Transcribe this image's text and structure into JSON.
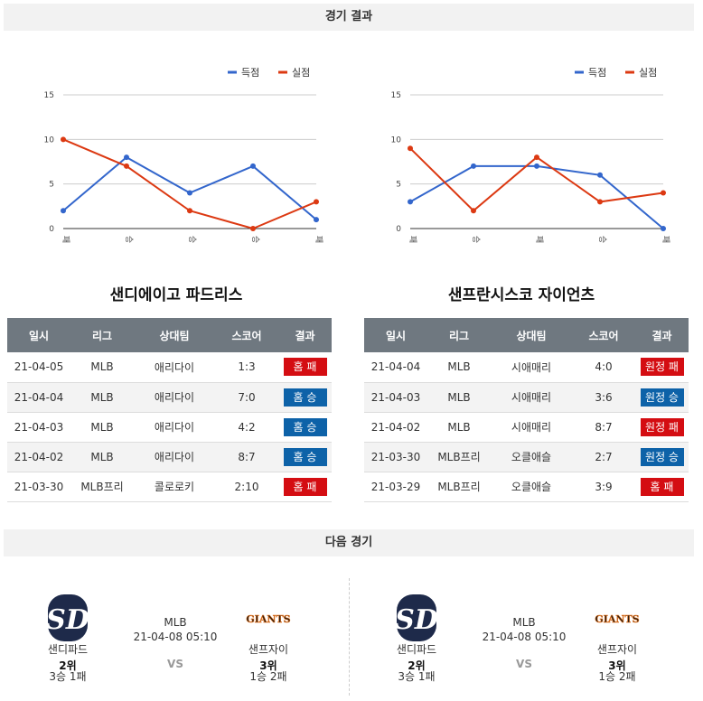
{
  "sections": {
    "results_title": "경기 결과",
    "next_title": "다음 경기"
  },
  "colors": {
    "score": "#3366cc",
    "allowed": "#dc3912",
    "lose_badge": "#d40d12",
    "win_badge": "#0d62a8"
  },
  "chart_data": [
    {
      "type": "line",
      "categories": [
        "패",
        "승",
        "승",
        "승",
        "패"
      ],
      "ylim": [
        0,
        15
      ],
      "yticks": [
        0,
        5,
        10,
        15
      ],
      "legend_position": "top-right",
      "grid": true,
      "series": [
        {
          "name": "득점",
          "color": "#3366cc",
          "values": [
            2,
            8,
            4,
            7,
            1
          ]
        },
        {
          "name": "실점",
          "color": "#dc3912",
          "values": [
            10,
            7,
            2,
            0,
            3
          ]
        }
      ]
    },
    {
      "type": "line",
      "categories": [
        "패",
        "승",
        "패",
        "승",
        "패"
      ],
      "ylim": [
        0,
        15
      ],
      "yticks": [
        0,
        5,
        10,
        15
      ],
      "legend_position": "top-right",
      "grid": true,
      "series": [
        {
          "name": "득점",
          "color": "#3366cc",
          "values": [
            3,
            7,
            7,
            6,
            0
          ]
        },
        {
          "name": "실점",
          "color": "#dc3912",
          "values": [
            9,
            2,
            8,
            3,
            4
          ]
        }
      ]
    }
  ],
  "teams": [
    {
      "title": "샌디에이고 파드리스",
      "headers": [
        "일시",
        "리그",
        "상대팀",
        "스코어",
        "결과"
      ],
      "rows": [
        {
          "date": "21-04-05",
          "league": "MLB",
          "opponent": "애리다이",
          "score": "1:3",
          "result": "홈 패",
          "win": false
        },
        {
          "date": "21-04-04",
          "league": "MLB",
          "opponent": "애리다이",
          "score": "7:0",
          "result": "홈 승",
          "win": true
        },
        {
          "date": "21-04-03",
          "league": "MLB",
          "opponent": "애리다이",
          "score": "4:2",
          "result": "홈 승",
          "win": true
        },
        {
          "date": "21-04-02",
          "league": "MLB",
          "opponent": "애리다이",
          "score": "8:7",
          "result": "홈 승",
          "win": true
        },
        {
          "date": "21-03-30",
          "league": "MLB프리",
          "opponent": "콜로로키",
          "score": "2:10",
          "result": "홈 패",
          "win": false
        }
      ]
    },
    {
      "title": "샌프란시스코 자이언츠",
      "headers": [
        "일시",
        "리그",
        "상대팀",
        "스코어",
        "결과"
      ],
      "rows": [
        {
          "date": "21-04-04",
          "league": "MLB",
          "opponent": "시애매리",
          "score": "4:0",
          "result": "원정 패",
          "win": false
        },
        {
          "date": "21-04-03",
          "league": "MLB",
          "opponent": "시애매리",
          "score": "3:6",
          "result": "원정 승",
          "win": true
        },
        {
          "date": "21-04-02",
          "league": "MLB",
          "opponent": "시애매리",
          "score": "8:7",
          "result": "원정 패",
          "win": false
        },
        {
          "date": "21-03-30",
          "league": "MLB프리",
          "opponent": "오클애슬",
          "score": "2:7",
          "result": "원정 승",
          "win": true
        },
        {
          "date": "21-03-29",
          "league": "MLB프리",
          "opponent": "오클애슬",
          "score": "3:9",
          "result": "홈 패",
          "win": false
        }
      ]
    }
  ],
  "matches": [
    {
      "league": "MLB",
      "time": "21-04-08 05:10",
      "vs": "VS",
      "home": {
        "name": "샌디파드",
        "rank": "2위",
        "record": "3승 1패",
        "logo_icon": "padres-logo-icon",
        "logo_text": "SD"
      },
      "away": {
        "name": "샌프자이",
        "rank": "3위",
        "record": "1승 2패",
        "logo_icon": "giants-logo-icon",
        "logo_text": "GIANTS"
      }
    },
    {
      "league": "MLB",
      "time": "21-04-08 05:10",
      "vs": "VS",
      "home": {
        "name": "샌디파드",
        "rank": "2위",
        "record": "3승 1패",
        "logo_icon": "padres-logo-icon",
        "logo_text": "SD"
      },
      "away": {
        "name": "샌프자이",
        "rank": "3위",
        "record": "1승 2패",
        "logo_icon": "giants-logo-icon",
        "logo_text": "GIANTS"
      }
    }
  ]
}
